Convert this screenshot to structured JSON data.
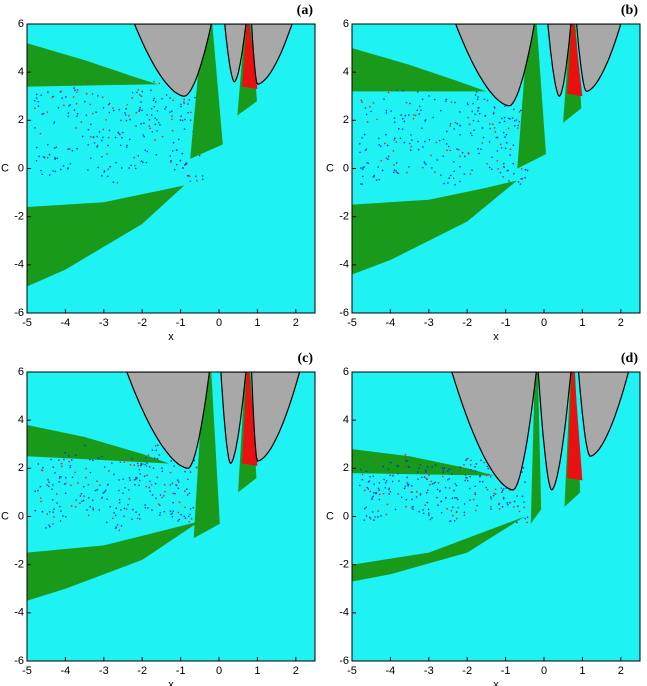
{
  "chart_data": [
    {
      "type": "map",
      "title": "(a)",
      "xlabel": "x",
      "ylabel": "C",
      "xlim": [
        -5,
        2.5
      ],
      "ylim": [
        -6,
        6
      ],
      "xticks": [
        -5,
        -4,
        -3,
        -2,
        -1,
        0,
        1,
        2
      ],
      "yticks": [
        -6,
        -4,
        -2,
        0,
        2,
        4,
        6
      ]
    },
    {
      "type": "map",
      "title": "(b)",
      "xlabel": "x",
      "ylabel": "C",
      "xlim": [
        -5,
        2.5
      ],
      "ylim": [
        -6,
        6
      ],
      "xticks": [
        -5,
        -4,
        -3,
        -2,
        -1,
        0,
        1,
        2
      ],
      "yticks": [
        -6,
        -4,
        -2,
        0,
        2,
        4,
        6
      ]
    },
    {
      "type": "map",
      "title": "(c)",
      "xlabel": "x",
      "ylabel": "C",
      "xlim": [
        -5,
        2.5
      ],
      "ylim": [
        -6,
        6
      ],
      "xticks": [
        -5,
        -4,
        -3,
        -2,
        -1,
        0,
        1,
        2
      ],
      "yticks": [
        -6,
        -4,
        -2,
        0,
        2,
        4,
        6
      ]
    },
    {
      "type": "map",
      "title": "(d)",
      "xlabel": "x",
      "ylabel": "C",
      "xlim": [
        -5,
        2.5
      ],
      "ylim": [
        -6,
        6
      ],
      "xticks": [
        -5,
        -4,
        -3,
        -2,
        -1,
        0,
        1,
        2
      ],
      "yticks": [
        -6,
        -4,
        -2,
        0,
        2,
        4,
        6
      ]
    }
  ]
}
